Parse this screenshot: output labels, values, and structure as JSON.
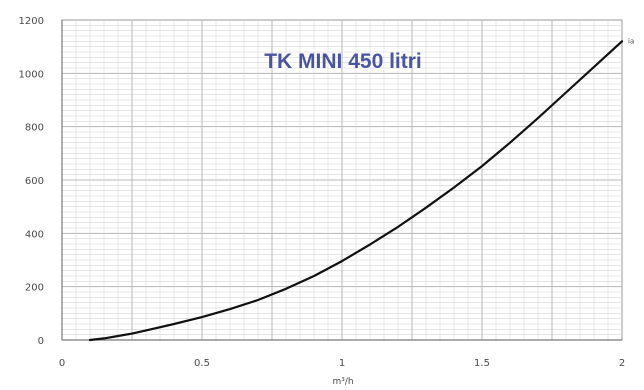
{
  "chart_data": {
    "type": "line",
    "title": "TK MINI 450 litri",
    "title_color": "#4a55a2",
    "line_color": "#111111",
    "grid_color": "#d4d4d4",
    "axis_color": "#9a9a9a",
    "xlabel": "m³/h",
    "ylabel": "",
    "xlim": [
      0,
      2
    ],
    "ylim": [
      0,
      1200
    ],
    "grid": true,
    "x_tick_labels": [
      {
        "value": 0,
        "label": "0"
      },
      {
        "value": 0.5,
        "label": "0.5"
      },
      {
        "value": 1,
        "label": "1"
      },
      {
        "value": 1.5,
        "label": "1.5"
      },
      {
        "value": 2,
        "label": "2"
      }
    ],
    "y_tick_labels": [
      {
        "value": 0,
        "label": "0"
      },
      {
        "value": 200,
        "label": "200"
      },
      {
        "value": 400,
        "label": "400"
      },
      {
        "value": 600,
        "label": "600"
      },
      {
        "value": 800,
        "label": "800"
      },
      {
        "value": 1000,
        "label": "1000"
      },
      {
        "value": 1200,
        "label": "1200"
      }
    ],
    "series": [
      {
        "name": "ia",
        "x": [
          0.1,
          0.15,
          0.2,
          0.25,
          0.3,
          0.4,
          0.5,
          0.6,
          0.7,
          0.8,
          0.9,
          1.0,
          1.1,
          1.2,
          1.3,
          1.4,
          1.5,
          1.6,
          1.7,
          1.8,
          1.9,
          2.0
        ],
        "y": [
          0,
          6,
          15,
          24,
          36,
          60,
          86,
          116,
          150,
          192,
          240,
          296,
          358,
          424,
          496,
          572,
          652,
          740,
          832,
          928,
          1024,
          1120
        ]
      }
    ]
  }
}
